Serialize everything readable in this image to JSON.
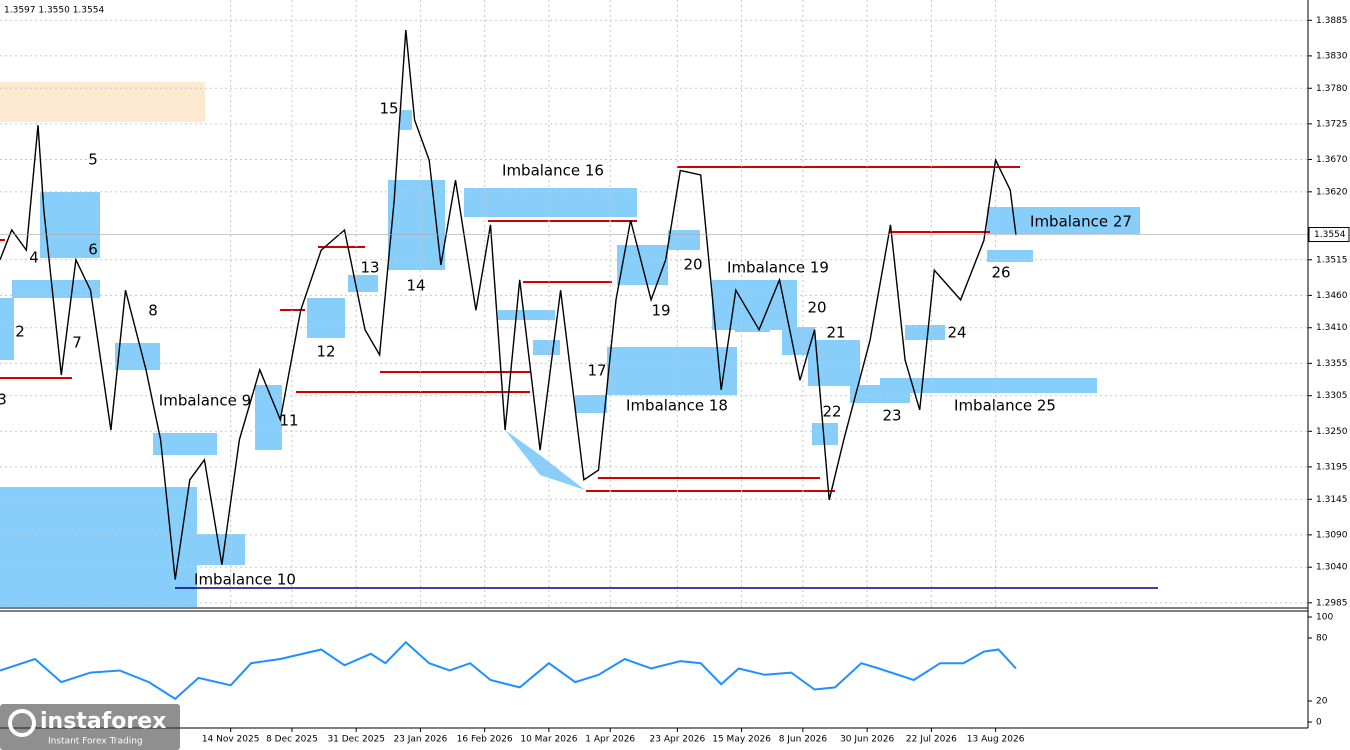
{
  "chart_data": [
    {
      "type": "line",
      "header": "1.3597 1.3550 1.3554",
      "xlim": [
        0,
        448
      ],
      "ylim": [
        1.2977,
        1.3904
      ],
      "grid": true,
      "xticks": [
        {
          "value": 79,
          "label": "14 Nov 2025"
        },
        {
          "value": 100,
          "label": "8 Dec 2025"
        },
        {
          "value": 122,
          "label": "31 Dec 2025"
        },
        {
          "value": 144,
          "label": "23 Jan 2026"
        },
        {
          "value": 166,
          "label": "16 Feb 2026"
        },
        {
          "value": 188,
          "label": "10 Mar 2026"
        },
        {
          "value": 209,
          "label": "1 Apr 2026"
        },
        {
          "value": 232,
          "label": "23 Apr 2026"
        },
        {
          "value": 254,
          "label": "15 May 2026"
        },
        {
          "value": 275,
          "label": "8 Jun 2026"
        },
        {
          "value": 297,
          "label": "30 Jun 2026"
        },
        {
          "value": 319,
          "label": "22 Jul 2026"
        },
        {
          "value": 341,
          "label": "13 Aug 2026"
        }
      ],
      "yticks": [
        1.3885,
        {
          "value": 1.383,
          "label": "1.3830"
        },
        {
          "value": 1.378,
          "label": "1.3780"
        },
        1.3725,
        {
          "value": 1.367,
          "label": "1.3670"
        },
        {
          "value": 1.362,
          "label": "1.3620"
        },
        1.3515,
        {
          "value": 1.346,
          "label": "1.3460"
        },
        {
          "value": 1.341,
          "label": "1.3410"
        },
        1.3355,
        1.3305,
        {
          "value": 1.325,
          "label": "1.3250"
        },
        1.3195,
        1.3145,
        {
          "value": 1.309,
          "label": "1.3090"
        },
        {
          "value": 1.304,
          "label": "1.3040"
        },
        1.2985
      ],
      "last_price": {
        "value": 1.3554,
        "label": "1.3554"
      },
      "series": [
        {
          "color": "#000000",
          "x": [
            0,
            4,
            9,
            13,
            15,
            21,
            26,
            31,
            38,
            43,
            50,
            55,
            60,
            65,
            70,
            76,
            82,
            89,
            96,
            103,
            110,
            118,
            125,
            130,
            135,
            139,
            142,
            147,
            151,
            156,
            163,
            168,
            173,
            178,
            185,
            192,
            200,
            205,
            211,
            216,
            223,
            228,
            233,
            240,
            247,
            252,
            260,
            267,
            274,
            279,
            284,
            289,
            298,
            305,
            310,
            315,
            320,
            329,
            337,
            341,
            346,
            348
          ],
          "values": [
            1.3515,
            1.3561,
            1.353,
            1.3723,
            1.3592,
            1.3337,
            1.3515,
            1.3468,
            1.3252,
            1.3468,
            1.3345,
            1.3237,
            1.3021,
            1.3175,
            1.3206,
            1.3044,
            1.3237,
            1.3345,
            1.3268,
            1.3437,
            1.353,
            1.3561,
            1.3407,
            1.3368,
            1.3607,
            1.387,
            1.3731,
            1.3669,
            1.3507,
            1.3638,
            1.3437,
            1.3569,
            1.3252,
            1.3484,
            1.3221,
            1.3468,
            1.3175,
            1.319,
            1.3453,
            1.3576,
            1.3453,
            1.3515,
            1.3653,
            1.3646,
            1.3314,
            1.3468,
            1.3407,
            1.3484,
            1.3329,
            1.3407,
            1.3144,
            1.3237,
            1.3391,
            1.3569,
            1.336,
            1.3283,
            1.3499,
            1.3453,
            1.3545,
            1.3669,
            1.3623,
            1.3553
          ]
        }
      ],
      "annotations": [
        "Imbalance 16",
        "Imbalance 27",
        "Imbalance 19",
        "Imbalance 18",
        "Imbalance 9",
        "Imbalance 10",
        "Imbalance 25",
        "5",
        "6",
        "4",
        "2",
        "7",
        "8",
        "3",
        "11",
        "12",
        "13",
        "14",
        "15",
        "17",
        "19",
        "20",
        "20",
        "21",
        "22",
        "23",
        "24",
        "26"
      ]
    },
    {
      "type": "line",
      "xlim": [
        0,
        448
      ],
      "ylim": [
        0,
        100
      ],
      "yticks": [
        100,
        80,
        20,
        0
      ],
      "series": [
        {
          "color": "#1e90ff",
          "x": [
            0,
            12,
            21,
            31,
            41,
            51,
            60,
            68,
            79,
            86,
            96,
            110,
            118,
            127,
            132,
            139,
            147,
            154,
            161,
            168,
            178,
            188,
            197,
            205,
            214,
            223,
            233,
            240,
            247,
            253,
            262,
            271,
            279,
            286,
            295,
            301,
            313,
            322,
            330,
            337,
            342,
            348
          ],
          "values": [
            49,
            60,
            38,
            47,
            49,
            38,
            22,
            42,
            35,
            56,
            60,
            69,
            54,
            65,
            56,
            76,
            56,
            49,
            56,
            40,
            33,
            56,
            38,
            45,
            60,
            51,
            58,
            56,
            36,
            51,
            45,
            47,
            31,
            33,
            56,
            51,
            40,
            56,
            56,
            67,
            69,
            51
          ]
        }
      ]
    }
  ],
  "logo": {
    "name": "instaforex",
    "tagline": "Instant Forex Trading"
  }
}
